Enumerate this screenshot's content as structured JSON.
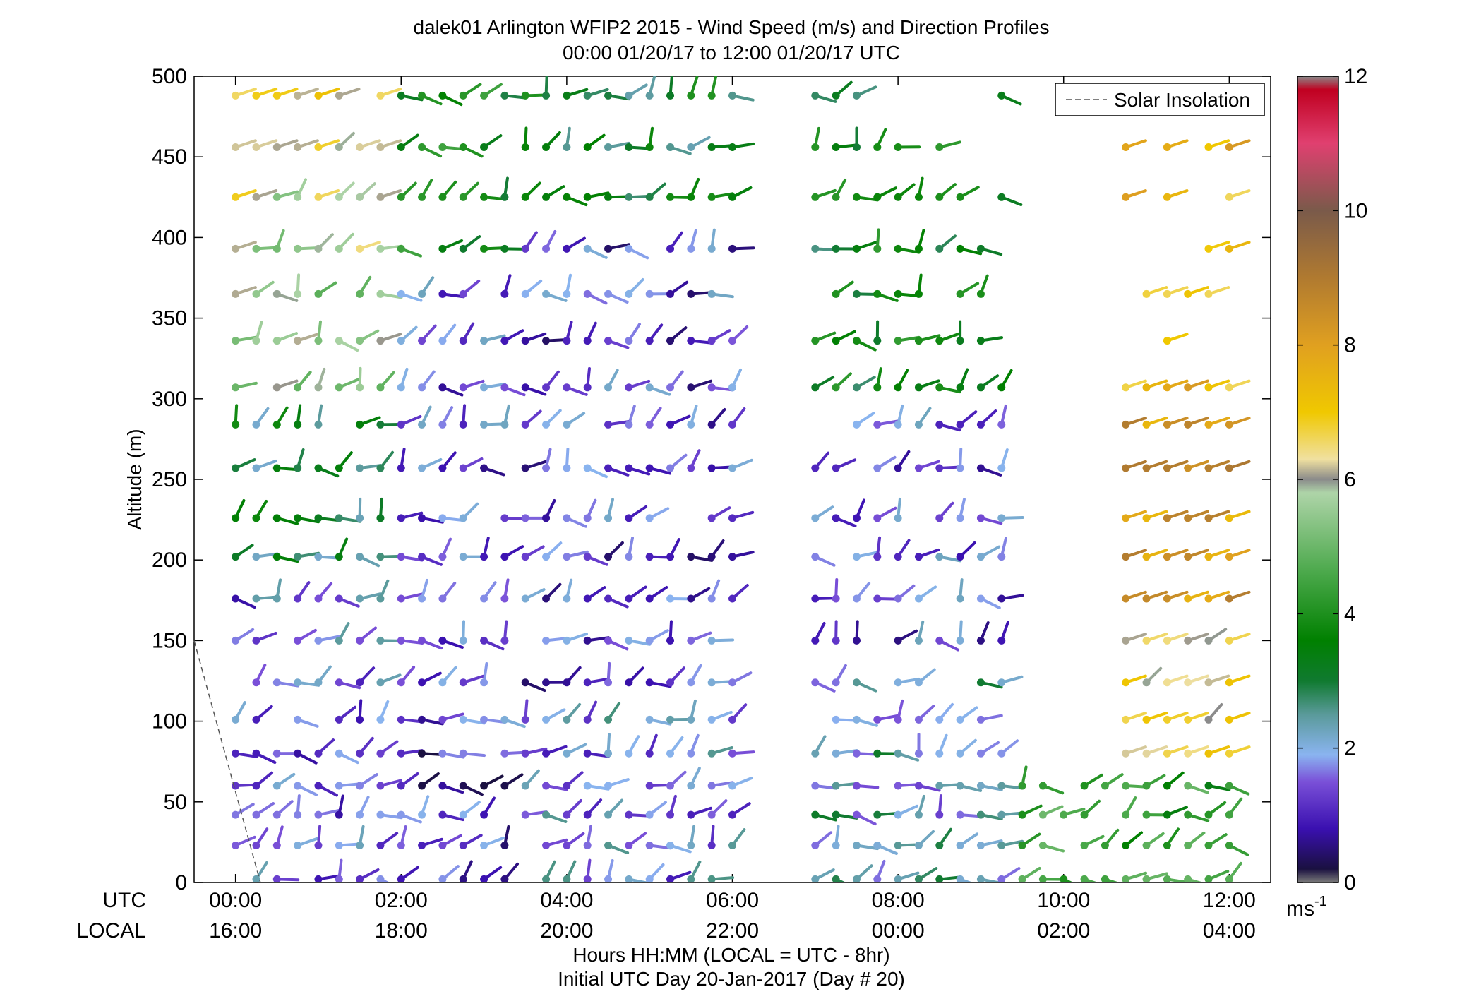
{
  "chart_data": {
    "type": "wind-barb-profile",
    "title": "dalek01 Arlington WFIP2 2015 - Wind Speed (m/s) and Direction Profiles",
    "subtitle": "00:00 01/20/17 to 12:00 01/20/17  UTC",
    "ylabel": "Altitude (m)",
    "xlabel": "Hours HH:MM  (LOCAL = UTC - 8hr)",
    "xlabel2": "Initial UTC Day 20-Jan-2017 (Day # 20)",
    "utc_row_label": "UTC",
    "local_row_label": "LOCAL",
    "x_ticks_utc": [
      "00:00",
      "02:00",
      "04:00",
      "06:00",
      "08:00",
      "10:00",
      "12:00"
    ],
    "x_ticks_local": [
      "16:00",
      "18:00",
      "20:00",
      "22:00",
      "00:00",
      "02:00",
      "04:00"
    ],
    "x_tick_hours": [
      0,
      2,
      4,
      6,
      8,
      10,
      12
    ],
    "xlim_hours": [
      -0.5,
      12.5
    ],
    "y_ticks": [
      "0",
      "50",
      "100",
      "150",
      "200",
      "250",
      "300",
      "350",
      "400",
      "450",
      "500"
    ],
    "ylim": [
      0,
      500
    ],
    "legend": {
      "label": "Solar Insolation",
      "position": "top-right",
      "style": "dashed gray"
    },
    "solar_insolation_line": {
      "points": [
        [
          -0.5,
          150
        ],
        [
          0.3,
          0
        ]
      ]
    },
    "colorbar": {
      "ticks": [
        "0",
        "2",
        "4",
        "6",
        "8",
        "10",
        "12"
      ],
      "range": [
        0,
        12
      ],
      "unit": "ms",
      "unit_exponent": "-1",
      "stops": [
        [
          0,
          "#7a7a7a"
        ],
        [
          0.2,
          "#1a1040"
        ],
        [
          0.8,
          "#3a10b0"
        ],
        [
          1.5,
          "#7a50d8"
        ],
        [
          1.9,
          "#8ab4f0"
        ],
        [
          2.5,
          "#5a9a9a"
        ],
        [
          3.0,
          "#107a30"
        ],
        [
          3.6,
          "#008000"
        ],
        [
          4.6,
          "#4aa84a"
        ],
        [
          5.8,
          "#aed4a8"
        ],
        [
          6.0,
          "#8a8a8a"
        ],
        [
          6.3,
          "#f0e0a0"
        ],
        [
          7.0,
          "#f0c800"
        ],
        [
          8.0,
          "#e0a020"
        ],
        [
          9.0,
          "#b07a30"
        ],
        [
          10.0,
          "#7a5a4a"
        ],
        [
          11.0,
          "#e04070"
        ],
        [
          11.8,
          "#c00020"
        ],
        [
          12.0,
          "#8a8a8a"
        ]
      ]
    },
    "barb_grid": {
      "time_step_hours": 0.25,
      "altitudes": [
        2,
        23,
        42,
        60,
        80,
        101,
        124,
        150,
        176,
        202,
        226,
        257,
        284,
        307,
        336,
        365,
        393,
        425,
        456,
        488
      ],
      "description": "Wind direction/speed barbs; per-barb values shown by color and stem orientation"
    }
  }
}
